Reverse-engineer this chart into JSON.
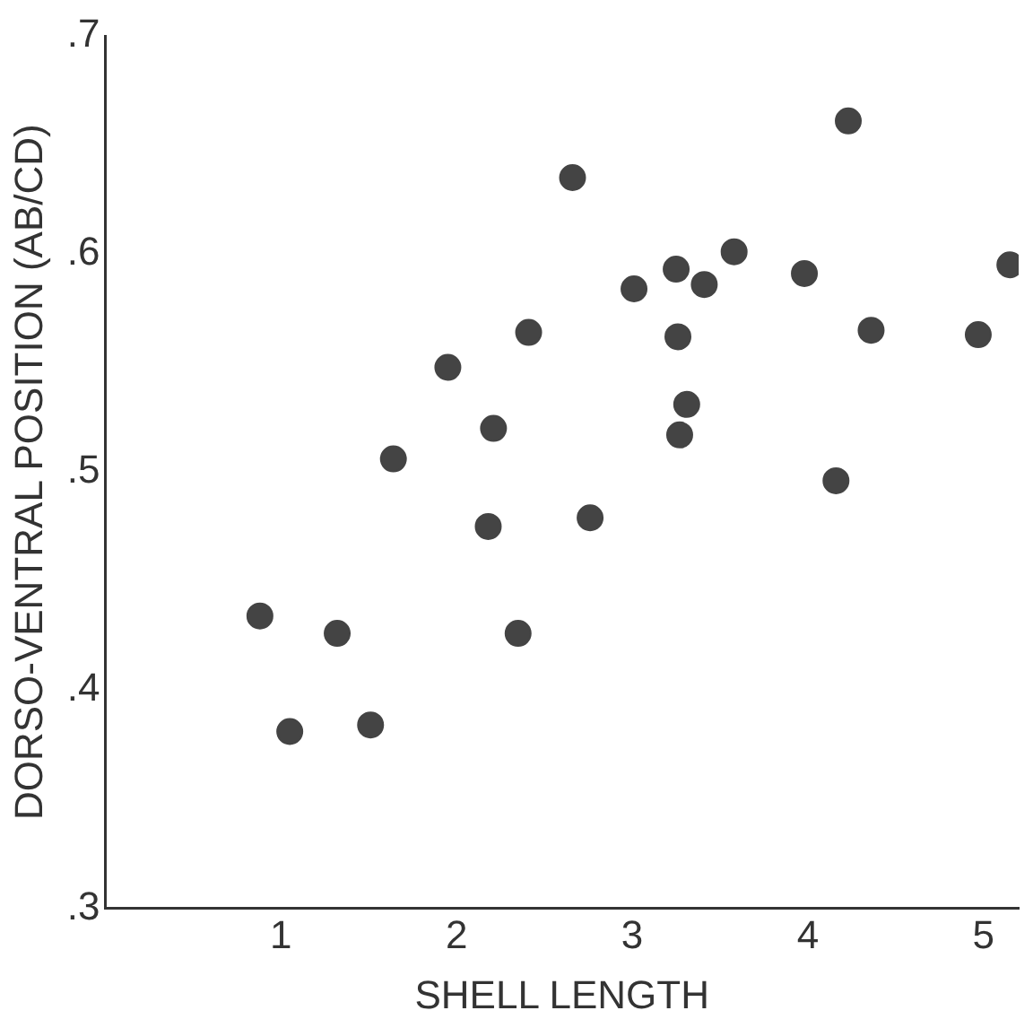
{
  "chart_data": {
    "type": "scatter",
    "xlabel": "SHELL LENGTH",
    "ylabel": "DORSO-VENTRAL POSITION (AB/CD)",
    "x": [
      0.88,
      1.05,
      1.32,
      1.51,
      1.64,
      1.95,
      2.18,
      2.21,
      2.35,
      2.41,
      2.66,
      2.76,
      3.01,
      3.25,
      3.27,
      3.26,
      3.31,
      3.41,
      3.58,
      3.98,
      4.16,
      4.23,
      4.36,
      4.97,
      5.15
    ],
    "values": [
      0.434,
      0.381,
      0.426,
      0.384,
      0.506,
      0.548,
      0.475,
      0.52,
      0.426,
      0.564,
      0.635,
      0.479,
      0.584,
      0.593,
      0.517,
      0.562,
      0.531,
      0.586,
      0.601,
      0.591,
      0.496,
      0.661,
      0.565,
      0.563,
      0.595
    ],
    "color": "#444444",
    "marker": "circle",
    "grid": false,
    "legend": false,
    "xlim": [
      0,
      5.2
    ],
    "xticks": [
      1,
      2,
      3,
      4,
      5
    ],
    "ylim": [
      0.3,
      0.7
    ],
    "yticks": [
      {
        "value": 0.3,
        "label": ".3"
      },
      {
        "value": 0.4,
        "label": ".4"
      },
      {
        "value": 0.5,
        "label": ".5"
      },
      {
        "value": 0.6,
        "label": ".6"
      },
      {
        "value": 0.7,
        "label": ".7"
      }
    ]
  }
}
